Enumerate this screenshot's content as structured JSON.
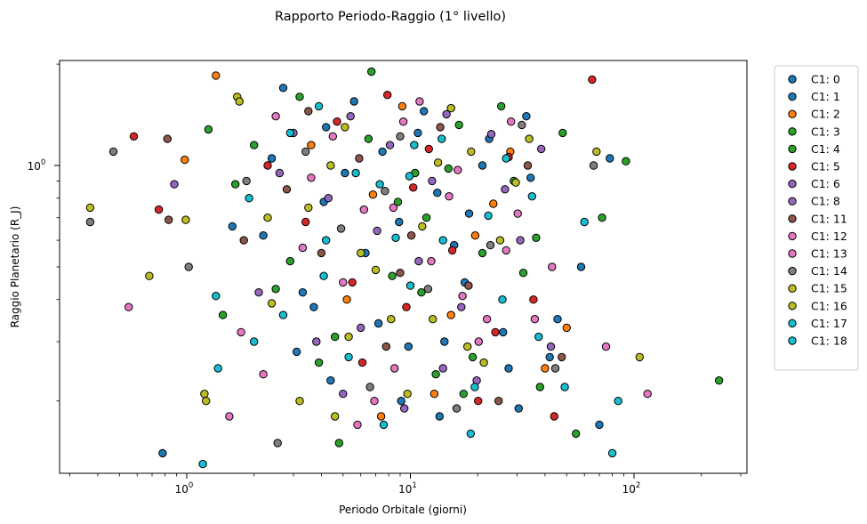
{
  "chart_data": {
    "type": "scatter",
    "title": "Rapporto Periodo-Raggio (1° livello)",
    "xlabel": "Periodo Orbitale (giorni)",
    "ylabel": "Raggio Planetario (R_J)",
    "xscale": "log",
    "yscale": "log",
    "xlim": [
      0.27,
      320
    ],
    "ylim": [
      0.122,
      2.05
    ],
    "x_ticks": [
      {
        "value": 1,
        "base": "10",
        "exp": "0"
      },
      {
        "value": 10,
        "base": "10",
        "exp": "1"
      },
      {
        "value": 100,
        "base": "10",
        "exp": "2"
      }
    ],
    "y_ticks": [
      {
        "value": 1,
        "base": "10",
        "exp": "0"
      }
    ],
    "grid": false,
    "legend_position": "outside-right",
    "series": [
      {
        "name": "C1: 0",
        "color": "#1f77b4",
        "points": [
          [
            2.7,
            1.7
          ],
          [
            3.1,
            0.28
          ],
          [
            4.2,
            1.3
          ],
          [
            5.1,
            0.95
          ],
          [
            6.3,
            0.55
          ],
          [
            7.5,
            1.1
          ],
          [
            9.1,
            0.2
          ],
          [
            11.5,
            1.45
          ],
          [
            14.2,
            0.3
          ],
          [
            18.3,
            0.72
          ],
          [
            22.5,
            1.2
          ],
          [
            27.5,
            0.25
          ],
          [
            34.5,
            0.92
          ],
          [
            45.5,
            0.35
          ],
          [
            58.0,
            0.5
          ],
          [
            78.0,
            1.05
          ],
          [
            0.78,
            0.14
          ],
          [
            2.2,
            0.62
          ],
          [
            3.7,
            0.38
          ],
          [
            13.2,
            0.83
          ],
          [
            30.5,
            0.19
          ]
        ]
      },
      {
        "name": "C1: 1",
        "color": "#1f77b4",
        "points": [
          [
            1.6,
            0.66
          ],
          [
            2.4,
            1.05
          ],
          [
            3.3,
            0.42
          ],
          [
            4.4,
            0.23
          ],
          [
            5.6,
            1.55
          ],
          [
            7.2,
            0.34
          ],
          [
            8.9,
            0.68
          ],
          [
            10.8,
            1.25
          ],
          [
            13.5,
            0.18
          ],
          [
            17.5,
            0.45
          ],
          [
            21.0,
            1.0
          ],
          [
            26.0,
            0.32
          ],
          [
            33.0,
            1.4
          ],
          [
            42.0,
            0.27
          ],
          [
            70.0,
            0.17
          ],
          [
            4.1,
            0.78
          ],
          [
            9.8,
            0.29
          ],
          [
            15.7,
            0.58
          ]
        ]
      },
      {
        "name": "C1: 2",
        "color": "#ff7f0e",
        "points": [
          [
            1.35,
            1.85
          ],
          [
            0.98,
            1.04
          ],
          [
            3.6,
            1.15
          ],
          [
            5.2,
            0.4
          ],
          [
            6.8,
            0.82
          ],
          [
            9.2,
            1.5
          ],
          [
            12.8,
            0.21
          ],
          [
            19.5,
            0.62
          ],
          [
            28.0,
            1.1
          ],
          [
            40.0,
            0.25
          ],
          [
            50.0,
            0.33
          ],
          [
            15.2,
            0.36
          ],
          [
            23.5,
            0.77
          ],
          [
            7.4,
            0.18
          ]
        ]
      },
      {
        "name": "C1: 3",
        "color": "#2ca02c",
        "points": [
          [
            1.25,
            1.28
          ],
          [
            1.65,
            0.88
          ],
          [
            3.2,
            1.6
          ],
          [
            4.6,
            0.31
          ],
          [
            6.7,
            1.9
          ],
          [
            8.3,
            0.47
          ],
          [
            10.5,
            0.95
          ],
          [
            13.0,
            0.24
          ],
          [
            16.5,
            1.32
          ],
          [
            21.0,
            0.55
          ],
          [
            29.0,
            0.9
          ],
          [
            38.0,
            0.22
          ],
          [
            92.0,
            1.03
          ],
          [
            240.0,
            0.23
          ],
          [
            55.0,
            0.16
          ],
          [
            2.5,
            0.43
          ],
          [
            11.8,
            0.7
          ]
        ]
      },
      {
        "name": "C1: 4",
        "color": "#2ca02c",
        "points": [
          [
            1.45,
            0.36
          ],
          [
            2.0,
            1.15
          ],
          [
            2.9,
            0.52
          ],
          [
            4.8,
            0.15
          ],
          [
            6.5,
            1.2
          ],
          [
            8.8,
            0.78
          ],
          [
            11.2,
            0.42
          ],
          [
            14.8,
            0.98
          ],
          [
            19.0,
            0.27
          ],
          [
            25.5,
            1.5
          ],
          [
            32.0,
            0.48
          ],
          [
            48.0,
            1.25
          ],
          [
            72.0,
            0.7
          ],
          [
            3.9,
            0.26
          ],
          [
            17.3,
            0.21
          ],
          [
            36.5,
            0.61
          ]
        ]
      },
      {
        "name": "C1: 5",
        "color": "#d62728",
        "points": [
          [
            0.58,
            1.22
          ],
          [
            0.75,
            0.74
          ],
          [
            2.3,
            1.0
          ],
          [
            3.4,
            0.68
          ],
          [
            4.7,
            1.35
          ],
          [
            6.1,
            0.26
          ],
          [
            7.9,
            1.62
          ],
          [
            9.6,
            0.38
          ],
          [
            12.1,
            1.12
          ],
          [
            15.4,
            0.56
          ],
          [
            20.1,
            0.2
          ],
          [
            27.5,
            1.06
          ],
          [
            35.5,
            0.4
          ],
          [
            44.0,
            0.18
          ],
          [
            65.0,
            1.8
          ],
          [
            5.5,
            0.45
          ],
          [
            10.3,
            0.86
          ],
          [
            24.0,
            0.32
          ]
        ]
      },
      {
        "name": "C1: 6",
        "color": "#9467bd",
        "points": [
          [
            0.88,
            0.88
          ],
          [
            2.6,
            0.95
          ],
          [
            3.8,
            0.3
          ],
          [
            5.4,
            1.4
          ],
          [
            7.1,
            0.64
          ],
          [
            9.4,
            0.19
          ],
          [
            12.5,
            0.9
          ],
          [
            16.9,
            0.38
          ],
          [
            23.0,
            1.24
          ],
          [
            31.0,
            0.6
          ],
          [
            42.5,
            0.29
          ],
          [
            14.0,
            0.25
          ]
        ]
      },
      {
        "name": "C1: 8",
        "color": "#9467bd",
        "points": [
          [
            2.1,
            0.42
          ],
          [
            3.0,
            1.25
          ],
          [
            4.3,
            0.8
          ],
          [
            6.0,
            0.33
          ],
          [
            8.1,
            1.15
          ],
          [
            10.9,
            0.52
          ],
          [
            14.5,
            1.42
          ],
          [
            19.8,
            0.23
          ],
          [
            26.5,
            0.85
          ],
          [
            38.5,
            1.12
          ],
          [
            5.0,
            0.21
          ]
        ]
      },
      {
        "name": "C1: 11",
        "color": "#8c564b",
        "points": [
          [
            0.82,
            1.2
          ],
          [
            0.83,
            0.69
          ],
          [
            1.8,
            0.6
          ],
          [
            2.8,
            0.85
          ],
          [
            4.0,
            0.55
          ],
          [
            5.9,
            1.05
          ],
          [
            7.8,
            0.29
          ],
          [
            10.1,
            0.62
          ],
          [
            13.6,
            1.3
          ],
          [
            18.2,
            0.44
          ],
          [
            24.8,
            0.2
          ],
          [
            33.5,
            1.0
          ],
          [
            47.5,
            0.27
          ],
          [
            3.5,
            1.45
          ],
          [
            9.0,
            0.48
          ]
        ]
      },
      {
        "name": "C1: 12",
        "color": "#e377c2",
        "points": [
          [
            0.55,
            0.38
          ],
          [
            1.75,
            0.32
          ],
          [
            2.5,
            1.4
          ],
          [
            3.6,
            0.92
          ],
          [
            5.0,
            0.45
          ],
          [
            6.9,
            0.2
          ],
          [
            9.3,
            1.35
          ],
          [
            12.4,
            0.52
          ],
          [
            16.3,
            0.97
          ],
          [
            22.0,
            0.35
          ],
          [
            30.2,
            0.72
          ],
          [
            43.0,
            0.5
          ],
          [
            115.0,
            0.21
          ],
          [
            8.4,
            0.75
          ],
          [
            26.8,
            0.56
          ]
        ]
      },
      {
        "name": "C1: 13",
        "color": "#e377c2",
        "points": [
          [
            1.55,
            0.18
          ],
          [
            2.2,
            0.24
          ],
          [
            3.3,
            0.57
          ],
          [
            4.5,
            1.22
          ],
          [
            6.2,
            0.74
          ],
          [
            8.5,
            0.25
          ],
          [
            11.0,
            1.55
          ],
          [
            14.9,
            0.81
          ],
          [
            20.2,
            0.3
          ],
          [
            28.2,
            1.35
          ],
          [
            36.0,
            0.35
          ],
          [
            75.0,
            0.29
          ],
          [
            5.8,
            0.17
          ],
          [
            17.1,
            0.41
          ]
        ]
      },
      {
        "name": "C1: 14",
        "color": "#7f7f7f",
        "points": [
          [
            0.37,
            0.68
          ],
          [
            0.47,
            1.1
          ],
          [
            1.02,
            0.5
          ],
          [
            1.85,
            0.9
          ],
          [
            2.55,
            0.15
          ],
          [
            3.4,
            1.1
          ],
          [
            4.9,
            0.65
          ],
          [
            6.6,
            0.22
          ],
          [
            9.0,
            1.22
          ],
          [
            12.0,
            0.43
          ],
          [
            16.1,
            0.19
          ],
          [
            22.8,
            0.58
          ],
          [
            31.5,
            1.32
          ],
          [
            44.5,
            0.25
          ],
          [
            66.0,
            1.0
          ],
          [
            7.7,
            0.84
          ]
        ]
      },
      {
        "name": "C1: 15",
        "color": "#bcbd22",
        "points": [
          [
            0.37,
            0.75
          ],
          [
            0.68,
            0.47
          ],
          [
            1.2,
            0.21
          ],
          [
            1.68,
            1.6
          ],
          [
            2.3,
            0.7
          ],
          [
            3.2,
            0.2
          ],
          [
            4.4,
            1.0
          ],
          [
            6.0,
            0.55
          ],
          [
            8.2,
            0.35
          ],
          [
            11.3,
            0.66
          ],
          [
            15.2,
            1.48
          ],
          [
            21.3,
            0.26
          ],
          [
            29.6,
            0.89
          ],
          [
            106.0,
            0.27
          ],
          [
            5.3,
            0.31
          ],
          [
            18.7,
            1.1
          ]
        ]
      },
      {
        "name": "C1: 16",
        "color": "#bcbd22",
        "points": [
          [
            0.99,
            0.69
          ],
          [
            1.22,
            0.2
          ],
          [
            1.72,
            1.55
          ],
          [
            2.4,
            0.39
          ],
          [
            3.5,
            0.75
          ],
          [
            5.1,
            1.3
          ],
          [
            7.0,
            0.49
          ],
          [
            9.7,
            0.21
          ],
          [
            13.3,
            1.02
          ],
          [
            18.0,
            0.29
          ],
          [
            25.2,
            0.6
          ],
          [
            34.0,
            1.2
          ],
          [
            68.0,
            1.1
          ],
          [
            4.6,
            0.18
          ],
          [
            12.6,
            0.35
          ]
        ]
      },
      {
        "name": "C1: 17",
        "color": "#17becf",
        "points": [
          [
            1.18,
            0.13
          ],
          [
            1.35,
            0.41
          ],
          [
            2.0,
            0.3
          ],
          [
            2.9,
            1.25
          ],
          [
            4.1,
            0.47
          ],
          [
            5.7,
            0.95
          ],
          [
            7.6,
            0.17
          ],
          [
            10.4,
            1.15
          ],
          [
            14.0,
            0.6
          ],
          [
            19.4,
            0.22
          ],
          [
            26.8,
            1.05
          ],
          [
            37.5,
            0.31
          ],
          [
            80.0,
            0.14
          ],
          [
            85.0,
            0.2
          ],
          [
            60.0,
            0.68
          ],
          [
            8.6,
            0.61
          ]
        ]
      },
      {
        "name": "C1: 18",
        "color": "#17becf",
        "points": [
          [
            1.38,
            0.25
          ],
          [
            1.9,
            0.8
          ],
          [
            2.7,
            0.36
          ],
          [
            3.9,
            1.5
          ],
          [
            5.3,
            0.27
          ],
          [
            7.3,
            0.88
          ],
          [
            10.0,
            0.44
          ],
          [
            13.8,
            1.2
          ],
          [
            18.6,
            0.16
          ],
          [
            25.8,
            0.4
          ],
          [
            35.0,
            0.81
          ],
          [
            49.0,
            0.22
          ],
          [
            4.2,
            0.6
          ],
          [
            9.9,
            0.93
          ],
          [
            22.3,
            0.71
          ]
        ]
      }
    ]
  }
}
